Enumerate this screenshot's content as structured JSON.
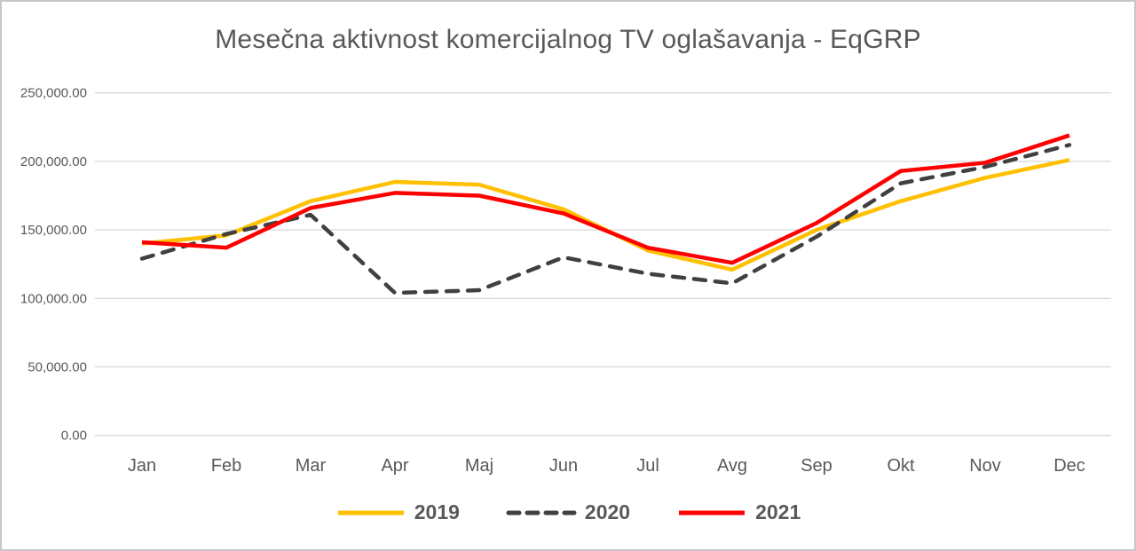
{
  "chart_data": {
    "type": "line",
    "title": "Mesečna aktivnost komercijalnog TV oglašavanja - EqGRP",
    "xlabel": "",
    "ylabel": "",
    "ylim": [
      0,
      250000
    ],
    "grid": true,
    "legend_position": "bottom",
    "categories": [
      "Jan",
      "Feb",
      "Mar",
      "Apr",
      "Maj",
      "Jun",
      "Jul",
      "Avg",
      "Sep",
      "Okt",
      "Nov",
      "Dec"
    ],
    "series": [
      {
        "name": "2019",
        "color": "#FFC000",
        "style": "solid",
        "values": [
          140000,
          146000,
          171000,
          185000,
          183000,
          165000,
          135000,
          121000,
          150000,
          171000,
          188000,
          201000
        ]
      },
      {
        "name": "2020",
        "color": "#404040",
        "style": "dashed",
        "values": [
          129000,
          147000,
          161000,
          104000,
          106000,
          130000,
          118000,
          111000,
          145000,
          184000,
          196000,
          212000
        ]
      },
      {
        "name": "2021",
        "color": "#FF0000",
        "style": "solid",
        "values": [
          141000,
          137000,
          166000,
          177000,
          175000,
          162000,
          137000,
          126000,
          155000,
          193000,
          199000,
          219000
        ]
      }
    ],
    "y_ticks": [
      {
        "label": "0.00",
        "value": 0
      },
      {
        "label": "50,000.00",
        "value": 50000
      },
      {
        "label": "100,000.00",
        "value": 100000
      },
      {
        "label": "150,000.00",
        "value": 150000
      },
      {
        "label": "200,000.00",
        "value": 200000
      },
      {
        "label": "250,000.00",
        "value": 250000
      }
    ]
  }
}
